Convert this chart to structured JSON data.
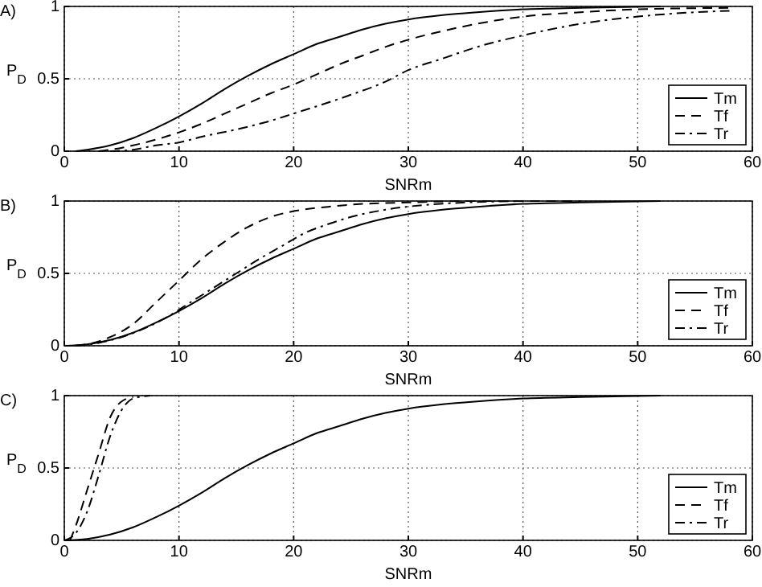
{
  "chart_data": [
    {
      "type": "line",
      "title": "A)",
      "xlabel": "SNRm",
      "ylabel": "P$_{D}$",
      "xlim": [
        0,
        60
      ],
      "ylim": [
        0,
        1
      ],
      "xticks": [
        0,
        10,
        20,
        30,
        40,
        50,
        60
      ],
      "yticks": [
        0,
        0.5,
        1
      ],
      "grid": true,
      "legend": "bottom right",
      "series": [
        {
          "name": "Tm",
          "color": "#000000",
          "line_style": "solid",
          "x": [
            1,
            2,
            4,
            6,
            8,
            10,
            12,
            14,
            16,
            18,
            20,
            22,
            24,
            26,
            28,
            30,
            33,
            36,
            40,
            45,
            52
          ],
          "values": [
            0,
            0.01,
            0.04,
            0.09,
            0.16,
            0.24,
            0.33,
            0.43,
            0.52,
            0.6,
            0.67,
            0.74,
            0.79,
            0.84,
            0.88,
            0.91,
            0.94,
            0.96,
            0.98,
            0.99,
            1
          ]
        },
        {
          "name": "Tf",
          "color": "#000000",
          "line_style": "dashed",
          "x": [
            3,
            4,
            6,
            8,
            10,
            12,
            14,
            16,
            18,
            20,
            22,
            24,
            26,
            28,
            30,
            33,
            36,
            40,
            45,
            50,
            58
          ],
          "values": [
            0,
            0.01,
            0.04,
            0.08,
            0.13,
            0.19,
            0.26,
            0.33,
            0.4,
            0.46,
            0.53,
            0.6,
            0.66,
            0.72,
            0.77,
            0.83,
            0.88,
            0.93,
            0.96,
            0.98,
            0.99
          ]
        },
        {
          "name": "Tr",
          "color": "#000000",
          "line_style": "dashdot",
          "x": [
            4,
            6,
            8,
            10,
            12,
            15,
            18,
            20,
            22,
            25,
            28,
            30,
            33,
            36,
            40,
            45,
            50,
            55,
            58
          ],
          "values": [
            0,
            0.01,
            0.04,
            0.06,
            0.1,
            0.15,
            0.21,
            0.26,
            0.31,
            0.39,
            0.48,
            0.56,
            0.64,
            0.72,
            0.8,
            0.88,
            0.93,
            0.96,
            0.97
          ]
        }
      ]
    },
    {
      "type": "line",
      "title": "B)",
      "xlabel": "SNRm",
      "ylabel": "P$_{D}$",
      "xlim": [
        0,
        60
      ],
      "ylim": [
        0,
        1
      ],
      "xticks": [
        0,
        10,
        20,
        30,
        40,
        50,
        60
      ],
      "yticks": [
        0,
        0.5,
        1
      ],
      "grid": true,
      "legend": "bottom right",
      "series": [
        {
          "name": "Tm",
          "color": "#000000",
          "line_style": "solid",
          "x": [
            0,
            2,
            4,
            6,
            8,
            10,
            12,
            14,
            16,
            18,
            20,
            22,
            24,
            26,
            28,
            30,
            33,
            36,
            40,
            45,
            52
          ],
          "values": [
            0,
            0.01,
            0.04,
            0.09,
            0.16,
            0.24,
            0.33,
            0.43,
            0.52,
            0.6,
            0.67,
            0.74,
            0.79,
            0.84,
            0.88,
            0.91,
            0.94,
            0.96,
            0.98,
            0.99,
            1
          ]
        },
        {
          "name": "Tf",
          "color": "#000000",
          "line_style": "dashed",
          "x": [
            1,
            2,
            4,
            6,
            8,
            10,
            12,
            14,
            16,
            18,
            20,
            23,
            26,
            30,
            35,
            45
          ],
          "values": [
            0,
            0.01,
            0.06,
            0.15,
            0.3,
            0.45,
            0.6,
            0.72,
            0.82,
            0.89,
            0.93,
            0.96,
            0.98,
            0.99,
            1,
            1
          ]
        },
        {
          "name": "Tr",
          "color": "#000000",
          "line_style": "dashdot",
          "x": [
            1,
            3,
            5,
            7,
            9,
            11,
            13,
            15,
            17,
            19,
            21,
            23,
            25,
            28,
            31,
            35,
            40
          ],
          "values": [
            0,
            0.02,
            0.06,
            0.12,
            0.2,
            0.3,
            0.4,
            0.5,
            0.6,
            0.69,
            0.78,
            0.84,
            0.89,
            0.94,
            0.97,
            0.99,
            1
          ]
        }
      ]
    },
    {
      "type": "line",
      "title": "C)",
      "xlabel": "SNRm",
      "ylabel": "P$_{D}$",
      "xlim": [
        0,
        60
      ],
      "ylim": [
        0,
        1
      ],
      "xticks": [
        0,
        10,
        20,
        30,
        40,
        50,
        60
      ],
      "yticks": [
        0,
        0.5,
        1
      ],
      "grid": true,
      "legend": "bottom right",
      "series": [
        {
          "name": "Tm",
          "color": "#000000",
          "line_style": "solid",
          "x": [
            0,
            2,
            4,
            6,
            8,
            10,
            12,
            14,
            16,
            18,
            20,
            22,
            24,
            26,
            28,
            30,
            33,
            36,
            40,
            45,
            52
          ],
          "values": [
            0,
            0.01,
            0.04,
            0.09,
            0.16,
            0.24,
            0.33,
            0.43,
            0.52,
            0.6,
            0.67,
            0.74,
            0.79,
            0.84,
            0.88,
            0.91,
            0.94,
            0.96,
            0.98,
            0.99,
            1
          ]
        },
        {
          "name": "Tf",
          "color": "#000000",
          "line_style": "dashed",
          "x": [
            0.5,
            1,
            2,
            3,
            4,
            5,
            6
          ],
          "values": [
            0,
            0.1,
            0.35,
            0.6,
            0.85,
            0.96,
            0.99
          ]
        },
        {
          "name": "Tr",
          "color": "#000000",
          "line_style": "dashdot",
          "x": [
            0,
            1,
            2,
            3,
            4,
            5,
            6,
            7.5
          ],
          "values": [
            0,
            0.05,
            0.2,
            0.45,
            0.72,
            0.9,
            0.98,
            1
          ]
        }
      ]
    }
  ]
}
